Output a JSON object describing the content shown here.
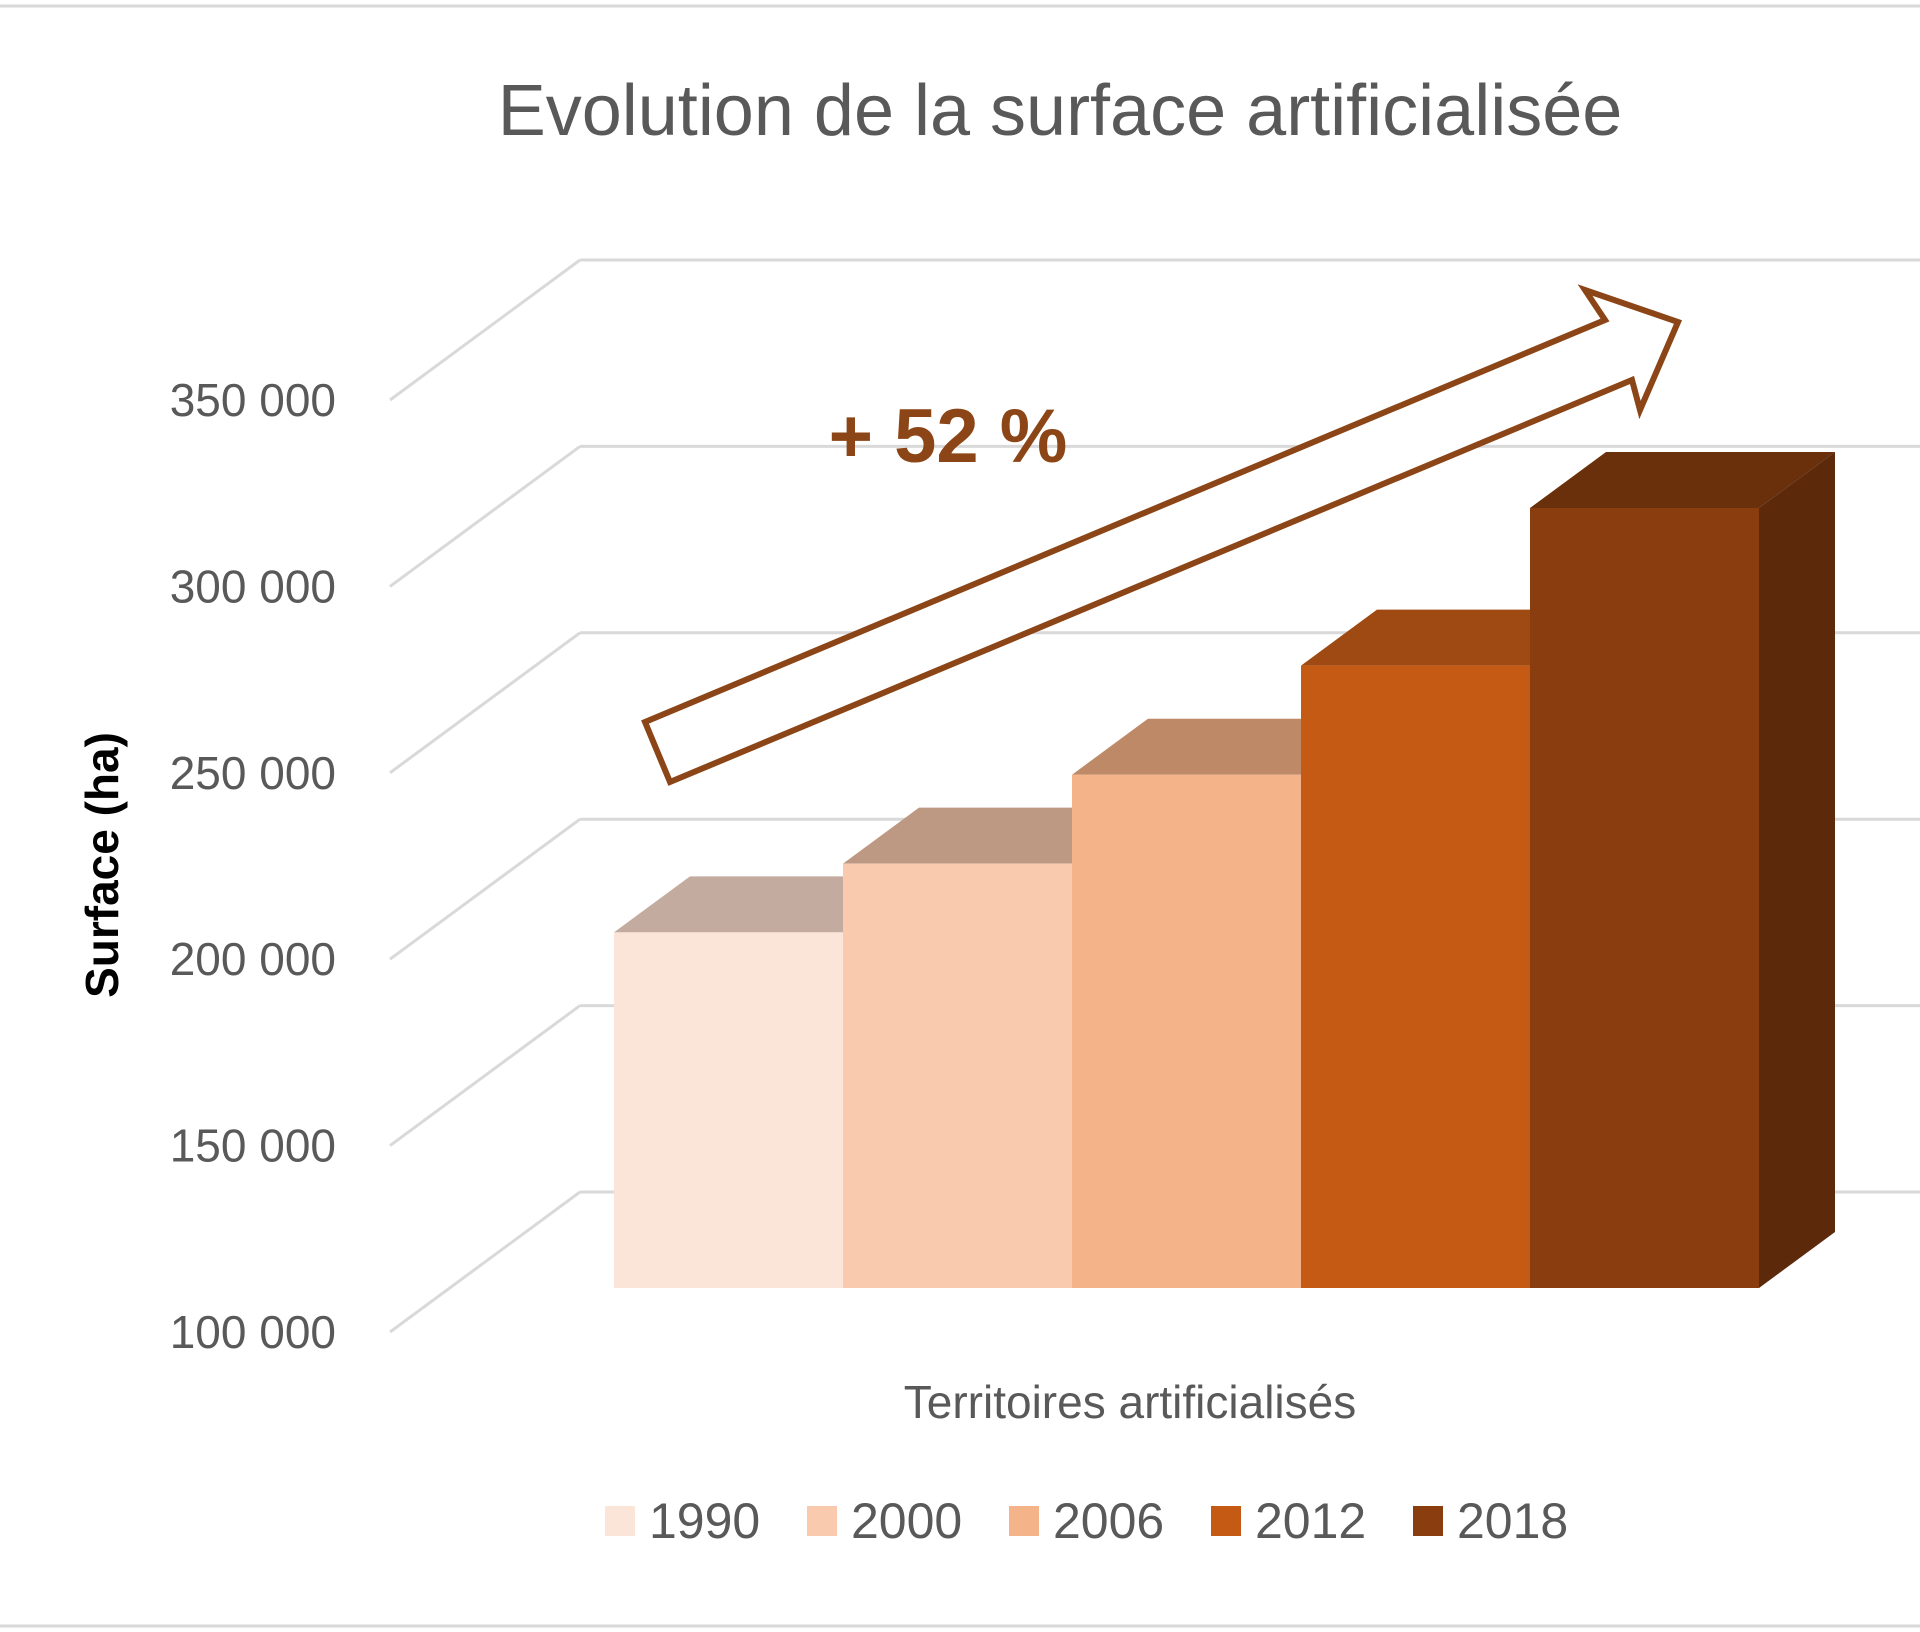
{
  "chart_data": {
    "type": "bar",
    "title": "Evolution de la surface artificialisée",
    "xlabel": "Territoires artificialisés",
    "ylabel": "Surface (ha)",
    "categories": [
      "Territoires artificialisés"
    ],
    "ylim": [
      100000,
      350000
    ],
    "yticks": [
      100000,
      150000,
      200000,
      250000,
      300000,
      350000
    ],
    "ytick_labels": [
      "100 000",
      "150 000",
      "200 000",
      "250 000",
      "300 000",
      "350 000"
    ],
    "series": [
      {
        "name": "1990",
        "values": [
          205000
        ],
        "color": "#FBE5D9",
        "top_color": "#C4ABA0"
      },
      {
        "name": "2000",
        "values": [
          222000
        ],
        "color": "#F9CAAE",
        "top_color": "#BD9983"
      },
      {
        "name": "2006",
        "values": [
          244000
        ],
        "color": "#F5B38A",
        "top_color": "#BE8967"
      },
      {
        "name": "2012",
        "values": [
          271000
        ],
        "color": "#C55A14",
        "top_color": "#9E4A12"
      },
      {
        "name": "2018",
        "values": [
          310000
        ],
        "color": "#8A3E10",
        "top_color": "#6A300C",
        "side_color": "#5C2A0A"
      }
    ],
    "annotation": {
      "text": "+ 52 %",
      "color": "#8C4516"
    },
    "legend_position": "bottom",
    "grid": true
  }
}
